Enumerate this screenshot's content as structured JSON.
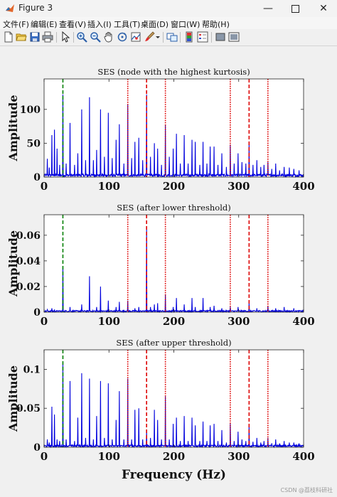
{
  "window": {
    "title": "Figure 3"
  },
  "menu": [
    {
      "label": "文件(F)"
    },
    {
      "label": "编辑(E)"
    },
    {
      "label": "查看(V)"
    },
    {
      "label": "插入(I)"
    },
    {
      "label": "工具(T)"
    },
    {
      "label": "桌面(D)"
    },
    {
      "label": "窗口(W)"
    },
    {
      "label": "帮助(H)"
    }
  ],
  "toolbar": [
    {
      "icon": "new-figure-icon"
    },
    {
      "icon": "open-file-icon"
    },
    {
      "icon": "save-icon"
    },
    {
      "icon": "print-icon"
    },
    {
      "icon": "edit-plot-arrow-icon"
    },
    {
      "icon": "zoom-in-icon"
    },
    {
      "icon": "zoom-out-icon"
    },
    {
      "icon": "pan-hand-icon"
    },
    {
      "icon": "rotate-3d-icon"
    },
    {
      "icon": "data-cursor-icon"
    },
    {
      "icon": "brush-icon"
    },
    {
      "icon": "link-plot-icon"
    },
    {
      "icon": "colorbar-icon"
    },
    {
      "icon": "legend-icon"
    },
    {
      "icon": "hide-plot-tools-icon"
    },
    {
      "icon": "show-plot-tools-icon"
    }
  ],
  "colors": {
    "series": "#0000dd",
    "green_marker": "#008000",
    "red_marker": "#dd0000",
    "axes_bg": "#ffffff"
  },
  "watermark": "CSDN @荔枝科研社",
  "chart_data": [
    {
      "type": "line",
      "title": "SES (node with the highest kurtosis)",
      "xlabel": "",
      "ylabel": "Amplitude",
      "xlim": [
        0,
        400
      ],
      "ylim": [
        0,
        145
      ],
      "xticks": [
        0,
        100,
        200,
        300,
        400
      ],
      "yticks": [
        0,
        50,
        100
      ],
      "ytick_labels": [
        "0",
        "50",
        "100"
      ],
      "vlines": [
        {
          "x": 29,
          "style": "dashed",
          "color": "green"
        },
        {
          "x": 129,
          "style": "dotted",
          "color": "red"
        },
        {
          "x": 158,
          "style": "dashed",
          "color": "red"
        },
        {
          "x": 187,
          "style": "dotted",
          "color": "red"
        },
        {
          "x": 287,
          "style": "dotted",
          "color": "red"
        },
        {
          "x": 316,
          "style": "dashed",
          "color": "red"
        },
        {
          "x": 345,
          "style": "dotted",
          "color": "red"
        }
      ],
      "peaks": [
        {
          "x": 5,
          "y": 27
        },
        {
          "x": 8,
          "y": 14
        },
        {
          "x": 12,
          "y": 62
        },
        {
          "x": 16,
          "y": 70
        },
        {
          "x": 20,
          "y": 42
        },
        {
          "x": 24,
          "y": 18
        },
        {
          "x": 29,
          "y": 122
        },
        {
          "x": 34,
          "y": 20
        },
        {
          "x": 40,
          "y": 80
        },
        {
          "x": 47,
          "y": 18
        },
        {
          "x": 52,
          "y": 35
        },
        {
          "x": 58,
          "y": 100
        },
        {
          "x": 64,
          "y": 25
        },
        {
          "x": 70,
          "y": 118
        },
        {
          "x": 76,
          "y": 25
        },
        {
          "x": 81,
          "y": 40
        },
        {
          "x": 87,
          "y": 100
        },
        {
          "x": 93,
          "y": 30
        },
        {
          "x": 99,
          "y": 95
        },
        {
          "x": 105,
          "y": 28
        },
        {
          "x": 111,
          "y": 55
        },
        {
          "x": 116,
          "y": 78
        },
        {
          "x": 123,
          "y": 20
        },
        {
          "x": 129,
          "y": 108
        },
        {
          "x": 135,
          "y": 28
        },
        {
          "x": 140,
          "y": 52
        },
        {
          "x": 146,
          "y": 58
        },
        {
          "x": 152,
          "y": 25
        },
        {
          "x": 158,
          "y": 122
        },
        {
          "x": 164,
          "y": 30
        },
        {
          "x": 170,
          "y": 50
        },
        {
          "x": 175,
          "y": 42
        },
        {
          "x": 181,
          "y": 18
        },
        {
          "x": 187,
          "y": 77
        },
        {
          "x": 193,
          "y": 30
        },
        {
          "x": 199,
          "y": 42
        },
        {
          "x": 204,
          "y": 64
        },
        {
          "x": 210,
          "y": 20
        },
        {
          "x": 216,
          "y": 62
        },
        {
          "x": 222,
          "y": 20
        },
        {
          "x": 228,
          "y": 55
        },
        {
          "x": 233,
          "y": 52
        },
        {
          "x": 240,
          "y": 18
        },
        {
          "x": 245,
          "y": 52
        },
        {
          "x": 251,
          "y": 20
        },
        {
          "x": 256,
          "y": 45
        },
        {
          "x": 262,
          "y": 45
        },
        {
          "x": 268,
          "y": 18
        },
        {
          "x": 274,
          "y": 35
        },
        {
          "x": 281,
          "y": 15
        },
        {
          "x": 287,
          "y": 48
        },
        {
          "x": 293,
          "y": 20
        },
        {
          "x": 299,
          "y": 35
        },
        {
          "x": 305,
          "y": 22
        },
        {
          "x": 311,
          "y": 20
        },
        {
          "x": 316,
          "y": 48
        },
        {
          "x": 322,
          "y": 18
        },
        {
          "x": 328,
          "y": 25
        },
        {
          "x": 334,
          "y": 15
        },
        {
          "x": 339,
          "y": 18
        },
        {
          "x": 345,
          "y": 22
        },
        {
          "x": 351,
          "y": 12
        },
        {
          "x": 357,
          "y": 20
        },
        {
          "x": 363,
          "y": 10
        },
        {
          "x": 370,
          "y": 15
        },
        {
          "x": 378,
          "y": 14
        },
        {
          "x": 385,
          "y": 12
        },
        {
          "x": 393,
          "y": 10
        }
      ],
      "noise": 4
    },
    {
      "type": "line",
      "title": "SES (after lower threshold)",
      "xlabel": "",
      "ylabel": "Amplitude",
      "xlim": [
        0,
        400
      ],
      "ylim": [
        0,
        0.076
      ],
      "xticks": [
        0,
        100,
        200,
        300,
        400
      ],
      "yticks": [
        0,
        0.02,
        0.04,
        0.06
      ],
      "ytick_labels": [
        "0",
        "0.02",
        "0.04",
        "0.06"
      ],
      "vlines": [
        {
          "x": 29,
          "style": "dashed",
          "color": "green"
        },
        {
          "x": 129,
          "style": "dotted",
          "color": "red"
        },
        {
          "x": 158,
          "style": "dashed",
          "color": "red"
        },
        {
          "x": 187,
          "style": "dotted",
          "color": "red"
        },
        {
          "x": 287,
          "style": "dotted",
          "color": "red"
        },
        {
          "x": 316,
          "style": "dashed",
          "color": "red"
        },
        {
          "x": 345,
          "style": "dotted",
          "color": "red"
        }
      ],
      "peaks": [
        {
          "x": 5,
          "y": 0.002
        },
        {
          "x": 12,
          "y": 0.003
        },
        {
          "x": 16,
          "y": 0.002
        },
        {
          "x": 29,
          "y": 0.035
        },
        {
          "x": 40,
          "y": 0.004
        },
        {
          "x": 58,
          "y": 0.006
        },
        {
          "x": 70,
          "y": 0.028
        },
        {
          "x": 81,
          "y": 0.004
        },
        {
          "x": 87,
          "y": 0.02
        },
        {
          "x": 99,
          "y": 0.009
        },
        {
          "x": 111,
          "y": 0.004
        },
        {
          "x": 116,
          "y": 0.008
        },
        {
          "x": 129,
          "y": 0.009
        },
        {
          "x": 140,
          "y": 0.003
        },
        {
          "x": 146,
          "y": 0.004
        },
        {
          "x": 158,
          "y": 0.065
        },
        {
          "x": 164,
          "y": 0.004
        },
        {
          "x": 170,
          "y": 0.006
        },
        {
          "x": 175,
          "y": 0.007
        },
        {
          "x": 187,
          "y": 0.014
        },
        {
          "x": 199,
          "y": 0.004
        },
        {
          "x": 204,
          "y": 0.011
        },
        {
          "x": 216,
          "y": 0.006
        },
        {
          "x": 228,
          "y": 0.011
        },
        {
          "x": 233,
          "y": 0.004
        },
        {
          "x": 245,
          "y": 0.011
        },
        {
          "x": 256,
          "y": 0.004
        },
        {
          "x": 262,
          "y": 0.005
        },
        {
          "x": 274,
          "y": 0.003
        },
        {
          "x": 287,
          "y": 0.004
        },
        {
          "x": 299,
          "y": 0.004
        },
        {
          "x": 316,
          "y": 0.007
        },
        {
          "x": 328,
          "y": 0.003
        },
        {
          "x": 345,
          "y": 0.005
        },
        {
          "x": 357,
          "y": 0.003
        },
        {
          "x": 370,
          "y": 0.004
        },
        {
          "x": 385,
          "y": 0.003
        }
      ],
      "noise": 0.0012
    },
    {
      "type": "line",
      "title": "SES (after upper threshold)",
      "xlabel": "Frequency (Hz)",
      "ylabel": "Amplitude",
      "xlim": [
        0,
        400
      ],
      "ylim": [
        0,
        0.125
      ],
      "xticks": [
        0,
        100,
        200,
        300,
        400
      ],
      "yticks": [
        0,
        0.05,
        0.1
      ],
      "ytick_labels": [
        "0",
        "0.05",
        "0.1"
      ],
      "vlines": [
        {
          "x": 29,
          "style": "dashed",
          "color": "green"
        },
        {
          "x": 129,
          "style": "dotted",
          "color": "red"
        },
        {
          "x": 158,
          "style": "dashed",
          "color": "red"
        },
        {
          "x": 187,
          "style": "dotted",
          "color": "red"
        },
        {
          "x": 287,
          "style": "dotted",
          "color": "red"
        },
        {
          "x": 316,
          "style": "dashed",
          "color": "red"
        },
        {
          "x": 345,
          "style": "dotted",
          "color": "red"
        }
      ],
      "peaks": [
        {
          "x": 5,
          "y": 0.01
        },
        {
          "x": 8,
          "y": 0.006
        },
        {
          "x": 12,
          "y": 0.052
        },
        {
          "x": 16,
          "y": 0.042
        },
        {
          "x": 20,
          "y": 0.01
        },
        {
          "x": 24,
          "y": 0.008
        },
        {
          "x": 29,
          "y": 0.108
        },
        {
          "x": 34,
          "y": 0.01
        },
        {
          "x": 40,
          "y": 0.085
        },
        {
          "x": 47,
          "y": 0.008
        },
        {
          "x": 52,
          "y": 0.038
        },
        {
          "x": 58,
          "y": 0.095
        },
        {
          "x": 64,
          "y": 0.012
        },
        {
          "x": 70,
          "y": 0.088
        },
        {
          "x": 76,
          "y": 0.01
        },
        {
          "x": 81,
          "y": 0.04
        },
        {
          "x": 87,
          "y": 0.085
        },
        {
          "x": 93,
          "y": 0.012
        },
        {
          "x": 99,
          "y": 0.082
        },
        {
          "x": 105,
          "y": 0.01
        },
        {
          "x": 111,
          "y": 0.035
        },
        {
          "x": 116,
          "y": 0.072
        },
        {
          "x": 123,
          "y": 0.01
        },
        {
          "x": 129,
          "y": 0.088
        },
        {
          "x": 135,
          "y": 0.01
        },
        {
          "x": 140,
          "y": 0.048
        },
        {
          "x": 146,
          "y": 0.05
        },
        {
          "x": 152,
          "y": 0.01
        },
        {
          "x": 158,
          "y": 0.02
        },
        {
          "x": 164,
          "y": 0.012
        },
        {
          "x": 170,
          "y": 0.048
        },
        {
          "x": 175,
          "y": 0.035
        },
        {
          "x": 181,
          "y": 0.01
        },
        {
          "x": 187,
          "y": 0.065
        },
        {
          "x": 193,
          "y": 0.01
        },
        {
          "x": 199,
          "y": 0.03
        },
        {
          "x": 204,
          "y": 0.038
        },
        {
          "x": 210,
          "y": 0.008
        },
        {
          "x": 216,
          "y": 0.04
        },
        {
          "x": 222,
          "y": 0.008
        },
        {
          "x": 228,
          "y": 0.038
        },
        {
          "x": 233,
          "y": 0.028
        },
        {
          "x": 240,
          "y": 0.008
        },
        {
          "x": 245,
          "y": 0.033
        },
        {
          "x": 251,
          "y": 0.008
        },
        {
          "x": 256,
          "y": 0.028
        },
        {
          "x": 262,
          "y": 0.03
        },
        {
          "x": 268,
          "y": 0.008
        },
        {
          "x": 274,
          "y": 0.022
        },
        {
          "x": 281,
          "y": 0.006
        },
        {
          "x": 287,
          "y": 0.03
        },
        {
          "x": 293,
          "y": 0.008
        },
        {
          "x": 299,
          "y": 0.02
        },
        {
          "x": 305,
          "y": 0.01
        },
        {
          "x": 311,
          "y": 0.008
        },
        {
          "x": 316,
          "y": 0.028
        },
        {
          "x": 322,
          "y": 0.007
        },
        {
          "x": 328,
          "y": 0.012
        },
        {
          "x": 334,
          "y": 0.006
        },
        {
          "x": 339,
          "y": 0.008
        },
        {
          "x": 345,
          "y": 0.012
        },
        {
          "x": 351,
          "y": 0.005
        },
        {
          "x": 357,
          "y": 0.01
        },
        {
          "x": 363,
          "y": 0.005
        },
        {
          "x": 370,
          "y": 0.008
        },
        {
          "x": 378,
          "y": 0.006
        },
        {
          "x": 385,
          "y": 0.006
        },
        {
          "x": 393,
          "y": 0.005
        }
      ],
      "noise": 0.0025
    }
  ]
}
